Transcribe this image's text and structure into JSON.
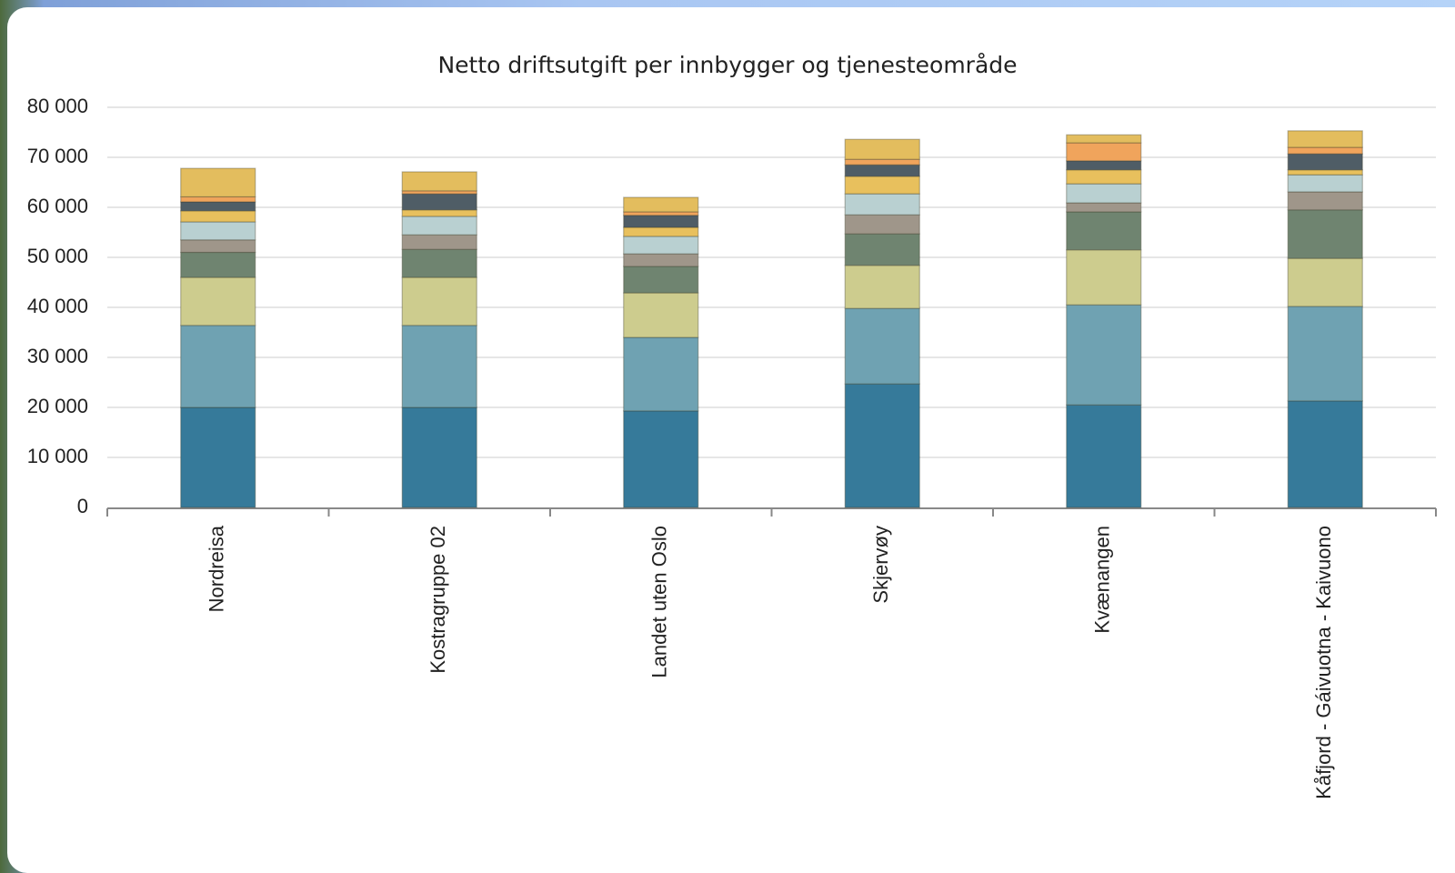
{
  "chart_data": {
    "type": "bar",
    "stacked": true,
    "title": "Netto driftsutgift per innbygger og tjenesteområde",
    "categories": [
      "Nordreisa",
      "Kostragruppe 02",
      "Landet uten Oslo",
      "Skjervøy",
      "Kvænangen",
      "Kåfjord  - Gáivuotna - Kaivuono"
    ],
    "series": [
      {
        "color": "#367a9a",
        "values": [
          20000,
          20000,
          19300,
          24700,
          20500,
          21300
        ]
      },
      {
        "color": "#6fa2b2",
        "values": [
          16400,
          16400,
          14700,
          15100,
          20000,
          18900
        ]
      },
      {
        "color": "#cdcc8e",
        "values": [
          9600,
          9600,
          8900,
          8600,
          11000,
          9600
        ]
      },
      {
        "color": "#6f8470",
        "values": [
          5000,
          5600,
          5300,
          6300,
          7600,
          9700
        ]
      },
      {
        "color": "#9f968a",
        "values": [
          2500,
          2900,
          2500,
          3800,
          1800,
          3600
        ]
      },
      {
        "color": "#b9d0d1",
        "values": [
          3600,
          3700,
          3500,
          4200,
          3800,
          3400
        ]
      },
      {
        "color": "#e8c05d",
        "values": [
          2200,
          1300,
          1800,
          3500,
          2800,
          1000
        ]
      },
      {
        "color": "#4f5d66",
        "values": [
          1800,
          3200,
          2400,
          2300,
          1800,
          3200
        ]
      },
      {
        "color": "#f0a45c",
        "values": [
          1000,
          600,
          700,
          1100,
          3600,
          1300
        ]
      },
      {
        "color": "#e3bd5e",
        "values": [
          5700,
          3800,
          2900,
          4000,
          1600,
          3300
        ]
      }
    ],
    "ylim": [
      0,
      80000
    ],
    "yticks": [
      {
        "value": 0,
        "label": "0"
      },
      {
        "value": 10000,
        "label": "10 000"
      },
      {
        "value": 20000,
        "label": "20 000"
      },
      {
        "value": 30000,
        "label": "30 000"
      },
      {
        "value": 40000,
        "label": "40 000"
      },
      {
        "value": 50000,
        "label": "50 000"
      },
      {
        "value": 60000,
        "label": "60 000"
      },
      {
        "value": 70000,
        "label": "70 000"
      },
      {
        "value": 80000,
        "label": "80 000"
      }
    ],
    "grid": true
  }
}
